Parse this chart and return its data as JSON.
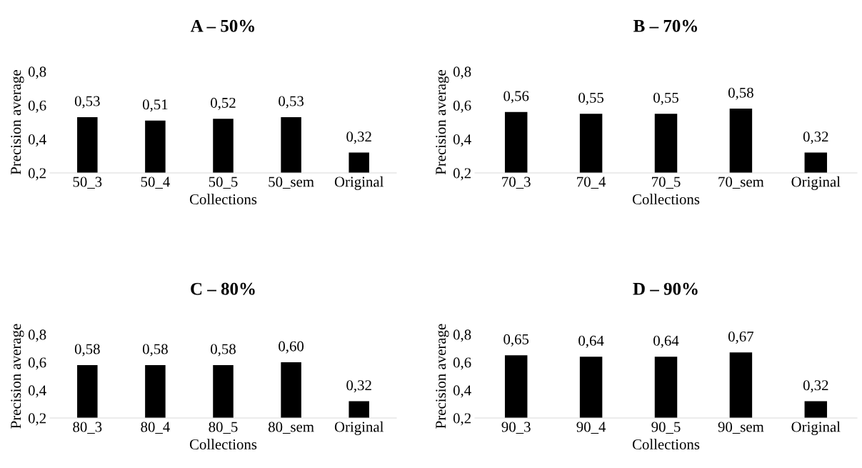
{
  "chart_data": [
    {
      "type": "bar",
      "title": "A – 50%",
      "xlabel": "Collections",
      "ylabel": "Precision average",
      "categories": [
        "50_3",
        "50_4",
        "50_5",
        "50_sem",
        "Original"
      ],
      "values": [
        0.53,
        0.51,
        0.52,
        0.53,
        0.32
      ],
      "value_labels": [
        "0,53",
        "0,51",
        "0,52",
        "0,53",
        "0,32"
      ],
      "color": "#000000",
      "ylim": [
        0.2,
        0.8
      ],
      "yticks": [
        {
          "value": 0.2,
          "label": "0,2"
        },
        {
          "value": 0.4,
          "label": "0,4"
        },
        {
          "value": 0.6,
          "label": "0,6"
        },
        {
          "value": 0.8,
          "label": "0,8"
        }
      ],
      "grid": false
    },
    {
      "type": "bar",
      "title": "B – 70%",
      "xlabel": "Collections",
      "ylabel": "Precision average",
      "categories": [
        "70_3",
        "70_4",
        "70_5",
        "70_sem",
        "Original"
      ],
      "values": [
        0.56,
        0.55,
        0.55,
        0.58,
        0.32
      ],
      "value_labels": [
        "0,56",
        "0,55",
        "0,55",
        "0,58",
        "0,32"
      ],
      "color": "#000000",
      "ylim": [
        0.2,
        0.8
      ],
      "yticks": [
        {
          "value": 0.2,
          "label": "0,2"
        },
        {
          "value": 0.4,
          "label": "0,4"
        },
        {
          "value": 0.6,
          "label": "0,6"
        },
        {
          "value": 0.8,
          "label": "0,8"
        }
      ],
      "grid": false
    },
    {
      "type": "bar",
      "title": "C – 80%",
      "xlabel": "Collections",
      "ylabel": "Precision average",
      "categories": [
        "80_3",
        "80_4",
        "80_5",
        "80_sem",
        "Original"
      ],
      "values": [
        0.58,
        0.58,
        0.58,
        0.6,
        0.32
      ],
      "value_labels": [
        "0,58",
        "0,58",
        "0,58",
        "0,60",
        "0,32"
      ],
      "color": "#000000",
      "ylim": [
        0.2,
        0.8
      ],
      "yticks": [
        {
          "value": 0.2,
          "label": "0,2"
        },
        {
          "value": 0.4,
          "label": "0,4"
        },
        {
          "value": 0.6,
          "label": "0,6"
        },
        {
          "value": 0.8,
          "label": "0,8"
        }
      ],
      "grid": false
    },
    {
      "type": "bar",
      "title": "D – 90%",
      "xlabel": "Collections",
      "ylabel": "Precision average",
      "categories": [
        "90_3",
        "90_4",
        "90_5",
        "90_sem",
        "Original"
      ],
      "values": [
        0.65,
        0.64,
        0.64,
        0.67,
        0.32
      ],
      "value_labels": [
        "0,65",
        "0,64",
        "0,64",
        "0,67",
        "0,32"
      ],
      "color": "#000000",
      "ylim": [
        0.2,
        0.8
      ],
      "yticks": [
        {
          "value": 0.2,
          "label": "0,2"
        },
        {
          "value": 0.4,
          "label": "0,4"
        },
        {
          "value": 0.6,
          "label": "0,6"
        },
        {
          "value": 0.8,
          "label": "0,8"
        }
      ],
      "grid": false
    }
  ]
}
